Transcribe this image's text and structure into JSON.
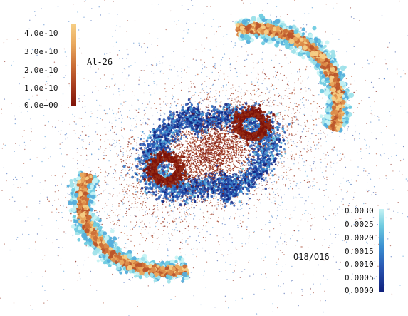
{
  "image": {
    "description_free": true,
    "colormaps": {
      "al26": {
        "label": "Al-26",
        "ticks": [
          "4.0e-10",
          "3.0e-10",
          "2.0e-10",
          "1.0e-10",
          "0.0e+00"
        ],
        "range": [
          0,
          4.4e-10
        ],
        "colors": [
          "#7d1208",
          "#a83d1e",
          "#cc7038",
          "#e9a85e",
          "#f6cf86"
        ]
      },
      "o18": {
        "label": "O18/O16",
        "ticks": [
          "0.0030",
          "0.0025",
          "0.0020",
          "0.0015",
          "0.0010",
          "0.0005",
          "0.0000"
        ],
        "range": [
          0,
          0.003
        ],
        "colors": [
          "#0e1e7a",
          "#2a56b2",
          "#3a8fd1",
          "#6fcbe0",
          "#c6f3f4"
        ]
      }
    }
  }
}
